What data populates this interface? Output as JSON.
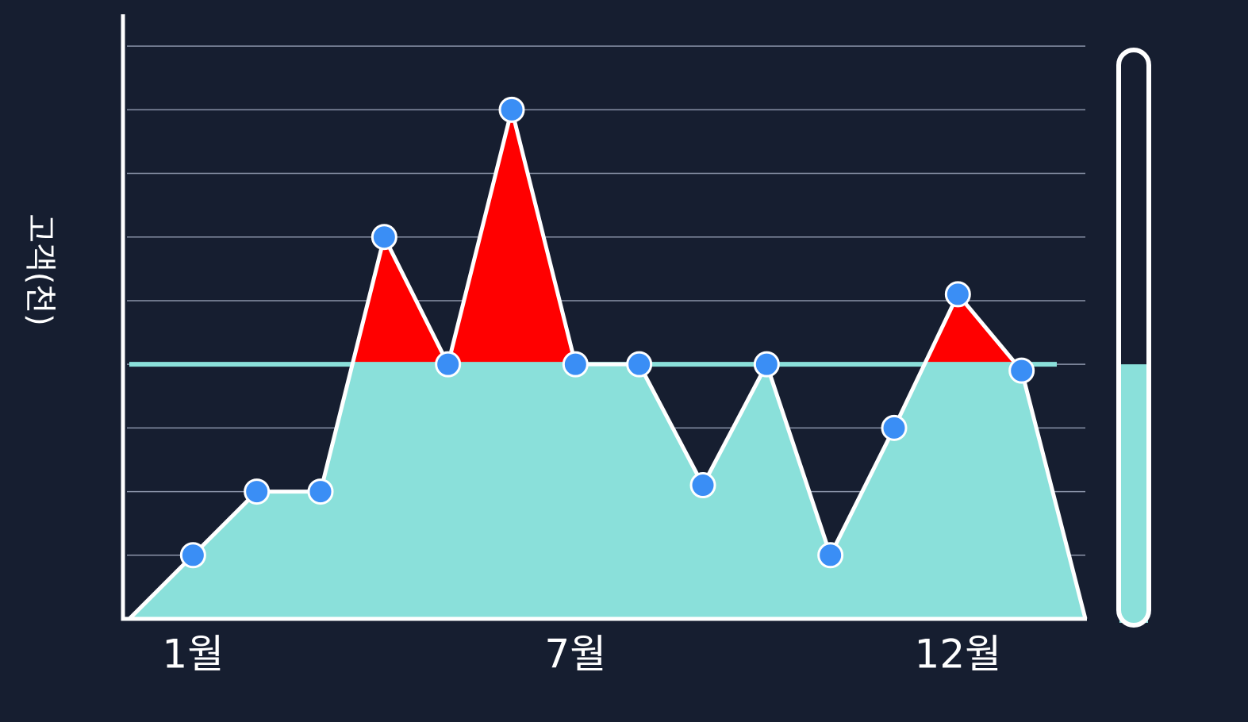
{
  "chart_data": {
    "type": "area",
    "y_label": "고객(천)",
    "categories": [
      null,
      "1월",
      null,
      null,
      null,
      null,
      null,
      "7월",
      null,
      null,
      null,
      null,
      null,
      "12월",
      null,
      null
    ],
    "values": [
      0,
      1,
      2,
      2,
      6,
      4,
      8,
      4,
      4,
      2.1,
      4,
      1,
      3,
      5.1,
      3.9,
      0
    ],
    "color": "#8ae0da",
    "above_color": "#ff0000",
    "marker_color": "#3a8ef5",
    "threshold": 4,
    "ylim": [
      0,
      9.5
    ],
    "yticks": [
      1,
      2,
      3,
      4,
      5,
      6,
      7,
      8,
      9
    ],
    "grid": true
  }
}
